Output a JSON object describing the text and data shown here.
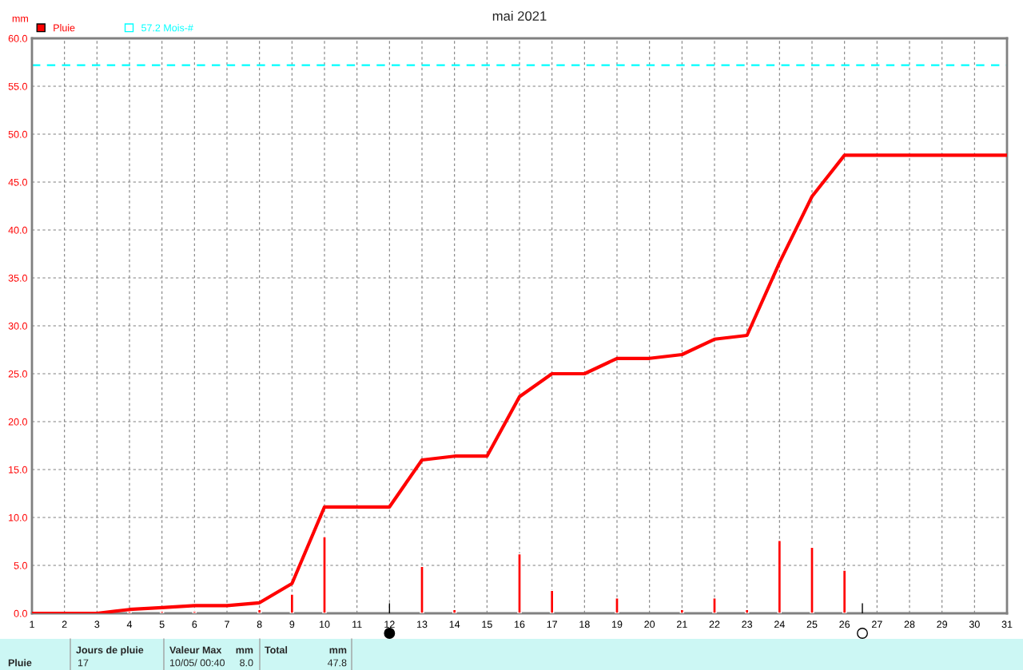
{
  "chart_data": {
    "type": "bar",
    "title": "mai 2021",
    "ylabel": "mm",
    "x": [
      1,
      2,
      3,
      4,
      5,
      6,
      7,
      8,
      9,
      10,
      11,
      12,
      13,
      14,
      15,
      16,
      17,
      18,
      19,
      20,
      21,
      22,
      23,
      24,
      25,
      26,
      27,
      28,
      29,
      30,
      31
    ],
    "series": [
      {
        "name": "Pluie",
        "color": "#ff0000",
        "values": [
          null,
          null,
          null,
          0.2,
          0.2,
          0.2,
          null,
          0.4,
          2.0,
          8.0,
          null,
          null,
          4.9,
          0.4,
          null,
          6.2,
          2.4,
          null,
          1.6,
          null,
          0.4,
          1.6,
          0.4,
          7.6,
          6.9,
          4.5,
          null,
          null,
          null,
          null,
          null
        ]
      },
      {
        "type": "line",
        "color": "#ff0000",
        "values": [
          0,
          0,
          0,
          0.4,
          0.6,
          0.8,
          0.8,
          1.1,
          3.1,
          11.1,
          11.1,
          11.1,
          16.0,
          16.4,
          16.4,
          22.6,
          25.0,
          25.0,
          26.6,
          26.6,
          27.0,
          28.6,
          29.0,
          36.6,
          43.5,
          47.8,
          47.8,
          47.8,
          47.8,
          47.8,
          47.8
        ]
      }
    ],
    "xlim": [
      1,
      31
    ],
    "xticks": [
      1,
      2,
      3,
      4,
      5,
      6,
      7,
      8,
      9,
      10,
      11,
      12,
      13,
      14,
      15,
      16,
      17,
      18,
      19,
      20,
      21,
      22,
      23,
      24,
      25,
      26,
      27,
      28,
      29,
      30,
      31
    ],
    "ylim": [
      0,
      60
    ],
    "yticks": [
      {
        "value": 0,
        "label": "0.0"
      },
      {
        "value": 5,
        "label": "5.0"
      },
      {
        "value": 10,
        "label": "10.0"
      },
      {
        "value": 15,
        "label": "15.0"
      },
      {
        "value": 20,
        "label": "20.0"
      },
      {
        "value": 25,
        "label": "25.0"
      },
      {
        "value": 30,
        "label": "30.0"
      },
      {
        "value": 35,
        "label": "35.0"
      },
      {
        "value": 40,
        "label": "40.0"
      },
      {
        "value": 45,
        "label": "45.0"
      },
      {
        "value": 50,
        "label": "50.0"
      },
      {
        "value": 55,
        "label": "55.0"
      },
      {
        "value": 60,
        "label": "60.0"
      }
    ],
    "ref_lines": [
      {
        "axis": "y",
        "value": 57.2,
        "label": "57.2 Mois-#",
        "color": "#00ffff",
        "line_style": "dashed"
      }
    ],
    "grid": true,
    "legend": "top left",
    "line_style": "solid",
    "marker": "none",
    "annotations": [
      "Pluie",
      "Jours de pluie",
      "17",
      "Valeur Max",
      "mm",
      "10/05/ 00:40",
      "8.0",
      "Total",
      "mm",
      "47.8"
    ]
  }
}
